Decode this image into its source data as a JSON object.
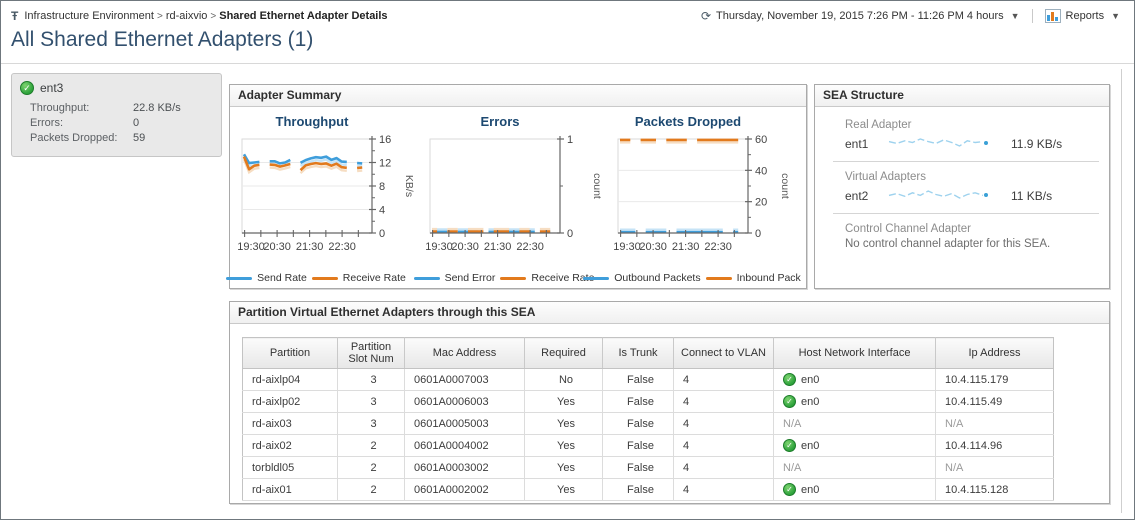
{
  "breadcrumb": {
    "items": [
      {
        "label": "Infrastructure Environment",
        "current": false
      },
      {
        "label": "rd-aixvio",
        "current": false
      },
      {
        "label": "Shared Ethernet Adapter Details",
        "current": true
      }
    ]
  },
  "timebar": {
    "range_label": "Thursday, November 19, 2015 7:26 PM - 11:26 PM 4 hours",
    "reports_label": "Reports"
  },
  "page": {
    "title": "All Shared Ethernet Adapters (1)"
  },
  "adapter_card": {
    "name": "ent3",
    "status": "ok",
    "rows": [
      {
        "label": "Throughput:",
        "value": "22.8 KB/s"
      },
      {
        "label": "Errors:",
        "value": "0"
      },
      {
        "label": "Packets Dropped:",
        "value": "59"
      }
    ]
  },
  "adapter_summary": {
    "title": "Adapter Summary"
  },
  "chart_data": [
    {
      "type": "line",
      "title": "Throughput",
      "ylabel": "KB/s",
      "ylim": [
        0,
        16
      ],
      "yticks_major": [
        0,
        4,
        8,
        12,
        16
      ],
      "yticks_minor": [
        2,
        6,
        10,
        14
      ],
      "xticks": [
        {
          "pos": 0.02,
          "label": "19:30"
        },
        {
          "pos": 0.145,
          "label": ""
        },
        {
          "pos": 0.27,
          "label": "20:30"
        },
        {
          "pos": 0.395,
          "label": ""
        },
        {
          "pos": 0.52,
          "label": "21:30"
        },
        {
          "pos": 0.645,
          "label": ""
        },
        {
          "pos": 0.77,
          "label": "22:30"
        },
        {
          "pos": 0.895,
          "label": ""
        }
      ],
      "legend_position": "bottom",
      "grid": true,
      "series": [
        {
          "name": "Send Rate",
          "color": "#3f9edb",
          "shadow": "#c6e3f6",
          "values": [
            13.4,
            11.9,
            12.0,
            12.1,
            null,
            12.2,
            12.2,
            11.85,
            12.0,
            12.45,
            null,
            11.95,
            12.4,
            12.7,
            12.9,
            12.8,
            13.0,
            12.45,
            12.75,
            12.15,
            12.1,
            null,
            11.9,
            11.85
          ]
        },
        {
          "name": "Receive Rate",
          "color": "#e27a1d",
          "shadow": "#f6ddc2",
          "values": [
            13.0,
            10.85,
            11.45,
            11.6,
            null,
            11.65,
            11.6,
            11.3,
            11.5,
            11.75,
            null,
            10.7,
            11.5,
            11.75,
            11.9,
            11.75,
            11.85,
            11.45,
            11.8,
            11.2,
            11.1,
            null,
            11.05,
            11.15
          ]
        }
      ]
    },
    {
      "type": "line",
      "title": "Errors",
      "ylabel": "count",
      "ylim": [
        0,
        1
      ],
      "yticks_major": [
        0,
        1
      ],
      "yticks_minor": [
        0.5
      ],
      "xticks": [
        {
          "pos": 0.02,
          "label": "19:30"
        },
        {
          "pos": 0.145,
          "label": ""
        },
        {
          "pos": 0.27,
          "label": "20:30"
        },
        {
          "pos": 0.395,
          "label": ""
        },
        {
          "pos": 0.52,
          "label": "21:30"
        },
        {
          "pos": 0.645,
          "label": ""
        },
        {
          "pos": 0.77,
          "label": "22:30"
        },
        {
          "pos": 0.895,
          "label": ""
        }
      ],
      "legend_position": "bottom",
      "grid": false,
      "series": [
        {
          "name": "Send Error",
          "color": "#3f9edb",
          "shadow": "#c6e3f6",
          "values": [
            0.012,
            0.012,
            0.012,
            0.012,
            null,
            0.012,
            0.012,
            0.012,
            0.012,
            0.012,
            null,
            0.012,
            0.012,
            0.012,
            0.012,
            0.012,
            0.012,
            0.012,
            0.012,
            0.012,
            0.012,
            null,
            0.012,
            0.012
          ]
        },
        {
          "name": "Receive Rate",
          "color": "#e27a1d",
          "shadow": "#f6ddc2",
          "values": [
            0.015,
            0.015,
            null,
            0.015,
            0.015,
            0.015,
            null,
            0.015,
            0.015,
            0.015,
            0.015,
            null,
            0.015,
            0.015,
            0.015,
            0.015,
            null,
            0.015,
            0.015,
            0.015,
            null,
            0.015,
            0.015,
            0.015
          ]
        }
      ]
    },
    {
      "type": "line",
      "title": "Packets Dropped",
      "ylabel": "count",
      "ylim": [
        0,
        60
      ],
      "yticks_major": [
        0,
        20,
        40,
        60
      ],
      "yticks_minor": [
        10,
        30,
        50
      ],
      "xticks": [
        {
          "pos": 0.02,
          "label": "19:30"
        },
        {
          "pos": 0.145,
          "label": ""
        },
        {
          "pos": 0.27,
          "label": "20:30"
        },
        {
          "pos": 0.395,
          "label": ""
        },
        {
          "pos": 0.52,
          "label": "21:30"
        },
        {
          "pos": 0.645,
          "label": ""
        },
        {
          "pos": 0.77,
          "label": "22:30"
        },
        {
          "pos": 0.895,
          "label": ""
        }
      ],
      "legend_position": "bottom",
      "grid": true,
      "series": [
        {
          "name": "Outbound Packets",
          "color": "#3f9edb",
          "shadow": "#c6e3f6",
          "values": [
            0.5,
            0.5,
            0.5,
            0.5,
            null,
            0.5,
            0.5,
            0.5,
            0.5,
            0.5,
            null,
            0.5,
            0.5,
            0.5,
            0.5,
            0.5,
            0.5,
            0.5,
            0.5,
            0.5,
            0.5,
            null,
            0.5,
            0.5
          ]
        },
        {
          "name": "Inbound Pack",
          "color": "#e27a1d",
          "shadow": "#f6ddc2",
          "values": [
            59.4,
            59.4,
            59.4,
            null,
            59.4,
            59.4,
            59.4,
            59.4,
            null,
            59.4,
            59.4,
            59.4,
            59.4,
            59.4,
            null,
            59.4,
            59.4,
            59.4,
            59.4,
            59.4,
            59.4,
            59.4,
            59.4,
            59.4
          ]
        }
      ]
    }
  ],
  "sea_structure": {
    "title": "SEA Structure",
    "sections": [
      {
        "label": "Real Adapter",
        "adapter": "ent1",
        "value": "11.9 KB/s",
        "sparkline": [
          2.2,
          2.0,
          2.3,
          2.1,
          2.5,
          2.2,
          2.0,
          2.4,
          2.1,
          1.7,
          2.3,
          2.1,
          2.2
        ]
      },
      {
        "label": "Virtual Adapters",
        "adapter": "ent2",
        "value": "11 KB/s",
        "sparkline": [
          2.1,
          2.3,
          2.0,
          2.4,
          2.1,
          2.6,
          2.2,
          2.0,
          2.3,
          1.8,
          2.2,
          2.4,
          2.1
        ]
      },
      {
        "label": "Control Channel Adapter",
        "message": "No control channel adapter for this SEA."
      }
    ]
  },
  "partition_panel": {
    "title": "Partition Virtual Ethernet Adapters through this SEA",
    "columns": [
      "Partition",
      "Partition Slot Num",
      "Mac Address",
      "Required",
      "Is Trunk",
      "Connect to VLAN",
      "Host Network Interface",
      "Ip Address"
    ],
    "rows": [
      {
        "partition": "rd-aixlp04",
        "slot": "3",
        "mac": "0601A0007003",
        "required": "No",
        "is_trunk": "False",
        "vlan": "4",
        "host_if": "en0",
        "host_if_status": "ok",
        "ip": "10.4.115.179"
      },
      {
        "partition": "rd-aixlp02",
        "slot": "3",
        "mac": "0601A0006003",
        "required": "Yes",
        "is_trunk": "False",
        "vlan": "4",
        "host_if": "en0",
        "host_if_status": "ok",
        "ip": "10.4.115.49"
      },
      {
        "partition": "rd-aix03",
        "slot": "3",
        "mac": "0601A0005003",
        "required": "Yes",
        "is_trunk": "False",
        "vlan": "4",
        "host_if": "N/A",
        "host_if_status": "na",
        "ip": "N/A"
      },
      {
        "partition": "rd-aix02",
        "slot": "2",
        "mac": "0601A0004002",
        "required": "Yes",
        "is_trunk": "False",
        "vlan": "4",
        "host_if": "en0",
        "host_if_status": "ok",
        "ip": "10.4.114.96"
      },
      {
        "partition": "torbldl05",
        "slot": "2",
        "mac": "0601A0003002",
        "required": "Yes",
        "is_trunk": "False",
        "vlan": "4",
        "host_if": "N/A",
        "host_if_status": "na",
        "ip": "N/A"
      },
      {
        "partition": "rd-aix01",
        "slot": "2",
        "mac": "0601A0002002",
        "required": "Yes",
        "is_trunk": "False",
        "vlan": "4",
        "host_if": "en0",
        "host_if_status": "ok",
        "ip": "10.4.115.128"
      }
    ]
  },
  "icons": {
    "breadcrumb_root": "topology-icon",
    "time": "clock-icon",
    "reports": "report-chart-icon",
    "status_ok": "check-circle-icon",
    "dropdown": "chevron-down-icon"
  },
  "colors": {
    "accent_blue": "#3f9edb",
    "accent_orange": "#e27a1d",
    "status_ok_green": "#2da23b",
    "title_navy": "#32506e",
    "sparkline_blue": "#9ed2ee"
  }
}
